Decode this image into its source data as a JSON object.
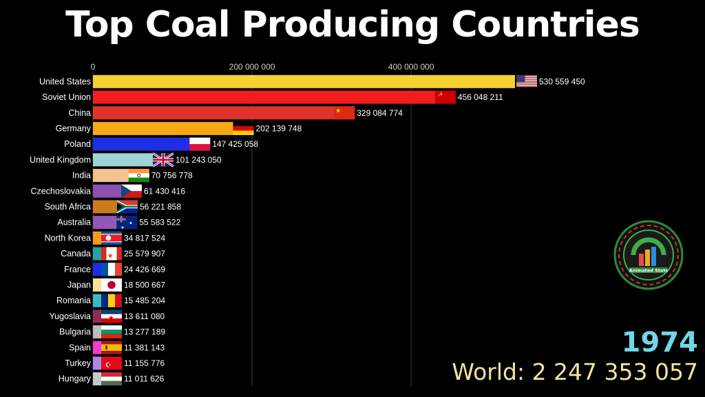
{
  "title": "Top Coal Producing Countries",
  "year": "1974",
  "world_label": "World:",
  "world_value": "2 247 353 057",
  "logo_text": "Animated Stats",
  "colors": {
    "background": "#000000",
    "year": "#6fd7e8",
    "world": "#f3e59a",
    "grid": "#3a3a3a"
  },
  "chart_data": {
    "type": "bar",
    "orientation": "horizontal",
    "xlim": [
      0,
      530559450
    ],
    "x_ticks": [
      0,
      200000000,
      400000000
    ],
    "x_tick_labels": [
      "0",
      "200 000 000",
      "400 000 000"
    ],
    "grid": true,
    "categories": [
      "United States",
      "Soviet Union",
      "China",
      "Germany",
      "Poland",
      "United Kingdom",
      "India",
      "Czechoslovakia",
      "South Africa",
      "Australia",
      "North Korea",
      "Canada",
      "France",
      "Japan",
      "Romania",
      "Yugoslavia",
      "Bulgaria",
      "Spain",
      "Turkey",
      "Hungary"
    ],
    "values": [
      530559450,
      456048211,
      329084774,
      202139748,
      147425058,
      101243050,
      70756778,
      61430416,
      56221858,
      55583522,
      34817524,
      25579907,
      24426669,
      18500667,
      15485204,
      13611080,
      13277189,
      11381143,
      11155776,
      11011626
    ],
    "value_labels": [
      "530 559 450",
      "456 048 211",
      "329 084 774",
      "202 139 748",
      "147 425 058",
      "101 243 050",
      "70 756 778",
      "61 430 416",
      "56 221 858",
      "55 583 522",
      "34 817 524",
      "25 579 907",
      "24 426 669",
      "18 500 667",
      "15 485 204",
      "13 611 080",
      "13 277 189",
      "11 381 143",
      "11 155 776",
      "11 011 626"
    ],
    "bar_colors": [
      "#f6d12f",
      "#f21d1d",
      "#e1332b",
      "#f5a915",
      "#1f2ee6",
      "#9fd4d6",
      "#f4c28e",
      "#8c4fb3",
      "#cc7a1e",
      "#9257b8",
      "#f79a1b",
      "#22a3a8",
      "#1a2de8",
      "#f6e39a",
      "#3cb8c5",
      "#8e2e57",
      "#bdbdbd",
      "#f03bd3",
      "#a98ae0",
      "#c8c8c8"
    ],
    "flags": [
      "flag-usa",
      "flag-ussr",
      "flag-china",
      "flag-germany",
      "flag-poland",
      "flag-uk",
      "flag-india",
      "flag-czechoslovakia",
      "flag-south-africa",
      "flag-australia",
      "flag-north-korea",
      "flag-canada",
      "flag-france",
      "flag-japan",
      "flag-romania",
      "flag-yugoslavia",
      "flag-bulgaria",
      "flag-spain",
      "flag-turkey",
      "flag-hungary"
    ]
  }
}
